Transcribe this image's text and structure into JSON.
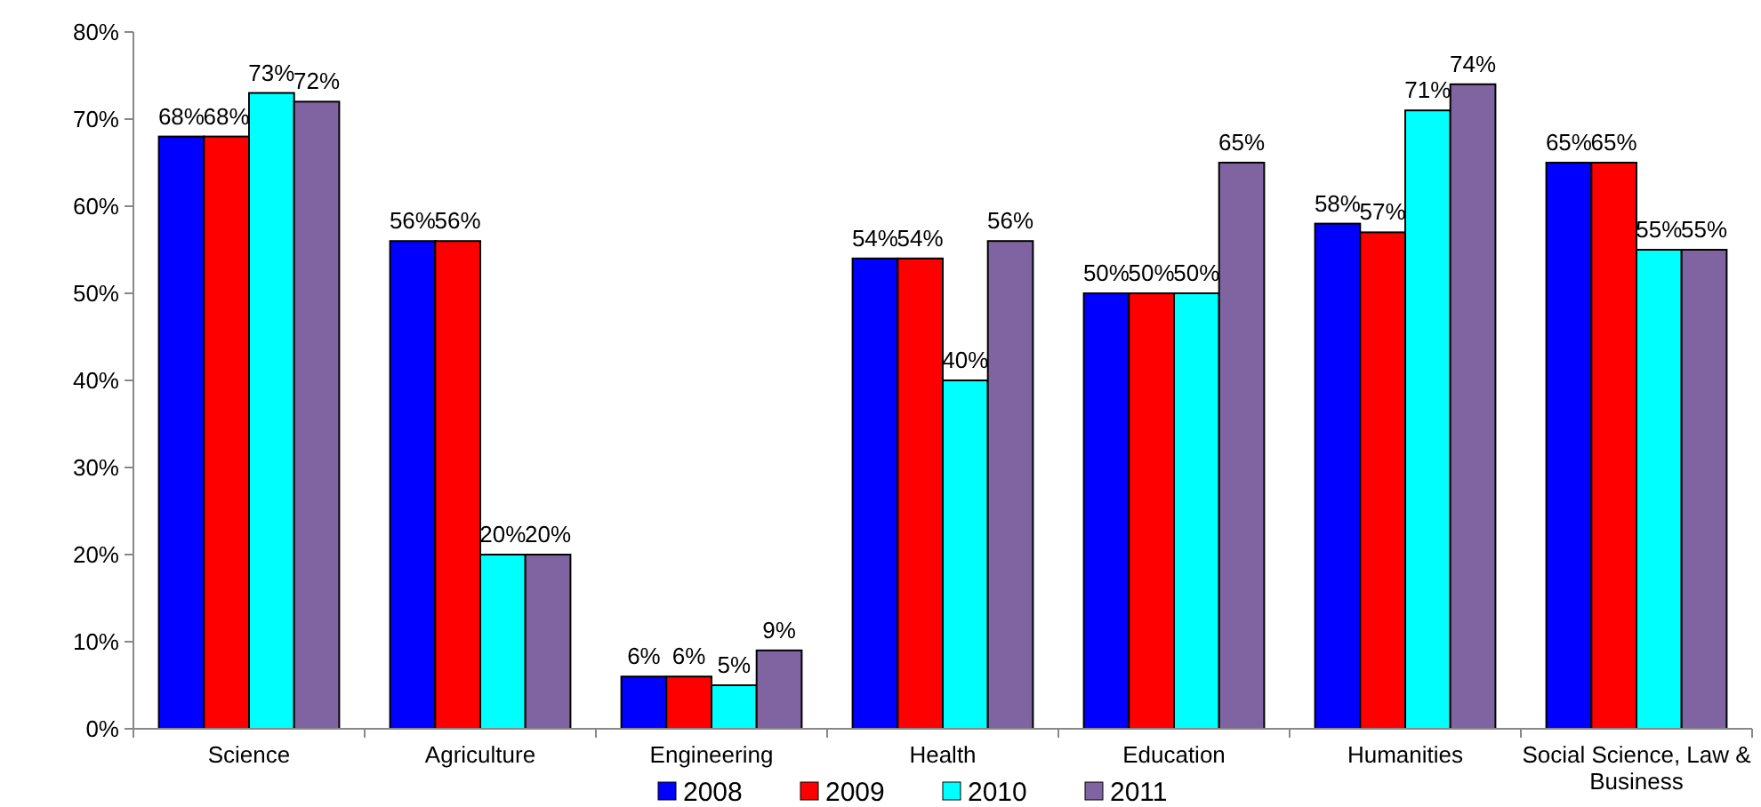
{
  "chart_data": {
    "type": "bar",
    "categories": [
      "Science",
      "Agriculture",
      "Engineering",
      "Health",
      "Education",
      "Humanities",
      "Social Science, Law & Business"
    ],
    "series": [
      {
        "name": "2008",
        "color": "#0000ff",
        "values": [
          68,
          56,
          6,
          54,
          50,
          58,
          65
        ],
        "value_labels": [
          "68%",
          "56%",
          "6%",
          "54%",
          "50%",
          "58%",
          "65%"
        ]
      },
      {
        "name": "2009",
        "color": "#ff0000",
        "values": [
          68,
          56,
          6,
          54,
          50,
          57,
          65
        ],
        "value_labels": [
          "68%",
          "56%",
          "6%",
          "54%",
          "50%",
          "57%",
          "65%"
        ]
      },
      {
        "name": "2010",
        "color": "#00ffff",
        "values": [
          73,
          20,
          5,
          40,
          50,
          71,
          55
        ],
        "value_labels": [
          "73%",
          "20%",
          "5%",
          "40%",
          "50%",
          "71%",
          "55%"
        ]
      },
      {
        "name": "2011",
        "color": "#8064a2",
        "values": [
          72,
          20,
          9,
          56,
          65,
          74,
          55
        ],
        "value_labels": [
          "72%",
          "20%",
          "9%",
          "56%",
          "65%",
          "74%",
          "55%"
        ]
      }
    ],
    "ylim": [
      0,
      80
    ],
    "yticks": [
      {
        "value": 0,
        "label": "0%"
      },
      {
        "value": 10,
        "label": "10%"
      },
      {
        "value": 20,
        "label": "20%"
      },
      {
        "value": 30,
        "label": "30%"
      },
      {
        "value": 40,
        "label": "40%"
      },
      {
        "value": 50,
        "label": "50%"
      },
      {
        "value": 60,
        "label": "60%"
      },
      {
        "value": 70,
        "label": "70%"
      },
      {
        "value": 80,
        "label": "80%"
      }
    ],
    "grid": false,
    "legend": "bottom"
  }
}
